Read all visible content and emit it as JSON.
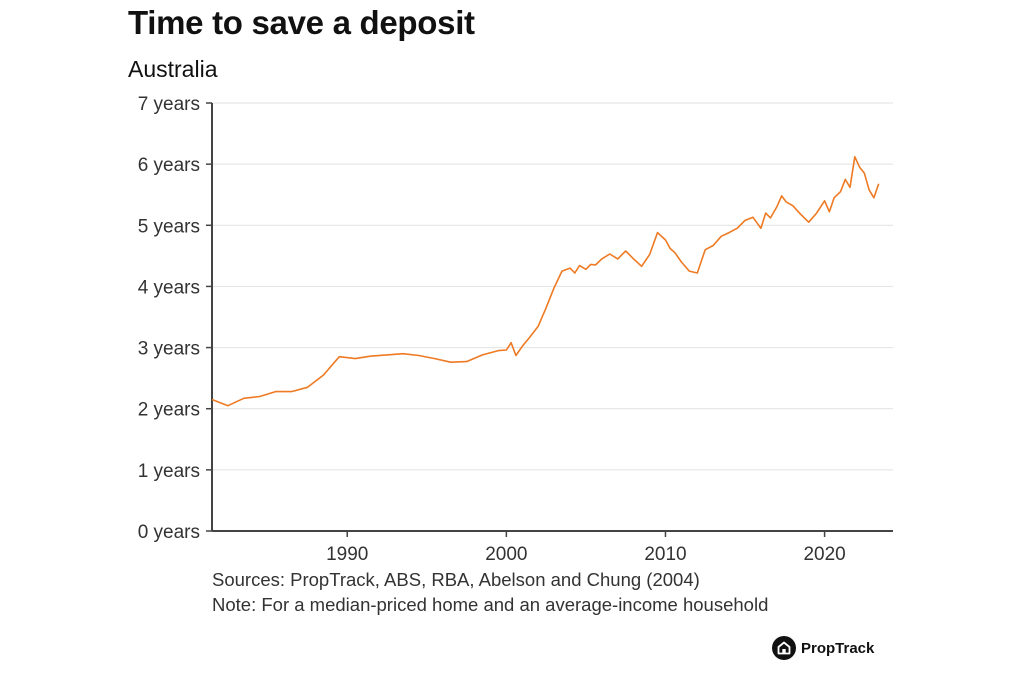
{
  "title": "Time to save a deposit",
  "subtitle": "Australia",
  "sources": "Sources: PropTrack, ABS, RBA, Abelson and Chung (2004)",
  "note": "Note: For a median-priced home and an average-income household",
  "logo_text": "PropTrack",
  "colors": {
    "line": "#ee7a23",
    "grid": "#e2e2e2",
    "axis": "#444444",
    "text": "#333333"
  },
  "chart_data": {
    "type": "line",
    "title": "Time to save a deposit",
    "subtitle": "Australia",
    "xlabel": "",
    "ylabel": "",
    "xlim": [
      1981.5,
      2024.3
    ],
    "ylim": [
      0,
      7
    ],
    "grid": "horizontal",
    "y_ticks": [
      0,
      1,
      2,
      3,
      4,
      5,
      6,
      7
    ],
    "y_tick_labels": [
      "0 years",
      "1 years",
      "2 years",
      "3 years",
      "4 years",
      "5 years",
      "6 years",
      "7 years"
    ],
    "x_ticks": [
      1990,
      2000,
      2010,
      2020
    ],
    "x_tick_labels": [
      "1990",
      "2000",
      "2010",
      "2020"
    ],
    "series": [
      {
        "x": [
          1981.5,
          1982.5,
          1983.5,
          1984.5,
          1985.5,
          1986.5,
          1987.5,
          1988.5,
          1989.5,
          1990.5,
          1991.5,
          1992.5,
          1993.5,
          1994.5,
          1995.5,
          1996.5,
          1997.5,
          1998.5,
          1999.5,
          2000.0,
          2000.3,
          2000.6,
          2001.0,
          2001.5,
          2002.0,
          2002.5,
          2003.0,
          2003.5,
          2004.0,
          2004.3,
          2004.6,
          2005.0,
          2005.3,
          2005.6,
          2006.0,
          2006.5,
          2007.0,
          2007.5,
          2008.0,
          2008.5,
          2009.0,
          2009.5,
          2010.0,
          2010.3,
          2010.6,
          2011.0,
          2011.5,
          2012.0,
          2012.5,
          2013.0,
          2013.5,
          2014.0,
          2014.5,
          2015.0,
          2015.5,
          2016.0,
          2016.3,
          2016.6,
          2017.0,
          2017.3,
          2017.6,
          2018.0,
          2018.5,
          2019.0,
          2019.5,
          2020.0,
          2020.3,
          2020.6,
          2021.0,
          2021.3,
          2021.6,
          2021.9,
          2022.2,
          2022.5,
          2022.8,
          2023.1,
          2023.4
        ],
        "values": [
          2.15,
          2.05,
          2.17,
          2.2,
          2.28,
          2.28,
          2.35,
          2.55,
          2.85,
          2.82,
          2.86,
          2.88,
          2.9,
          2.87,
          2.82,
          2.76,
          2.77,
          2.88,
          2.95,
          2.96,
          3.08,
          2.87,
          3.02,
          3.18,
          3.35,
          3.65,
          3.98,
          4.25,
          4.3,
          4.22,
          4.34,
          4.28,
          4.36,
          4.35,
          4.45,
          4.53,
          4.45,
          4.58,
          4.45,
          4.33,
          4.52,
          4.88,
          4.76,
          4.62,
          4.55,
          4.4,
          4.25,
          4.22,
          4.6,
          4.67,
          4.82,
          4.88,
          4.95,
          5.08,
          5.13,
          4.95,
          5.2,
          5.12,
          5.3,
          5.48,
          5.38,
          5.32,
          5.18,
          5.05,
          5.2,
          5.4,
          5.22,
          5.45,
          5.55,
          5.75,
          5.62,
          6.12,
          5.95,
          5.85,
          5.58,
          5.45,
          5.68
        ]
      }
    ]
  }
}
